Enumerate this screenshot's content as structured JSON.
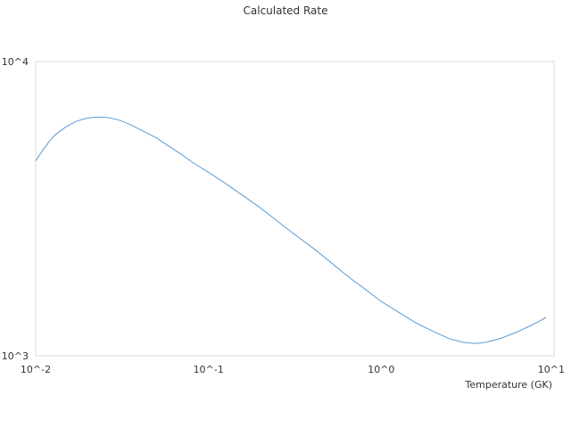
{
  "chart_data": {
    "type": "line",
    "title": "Calculated Rate",
    "xlabel": "Temperature (GK)",
    "ylabel": "",
    "x_scale": "log",
    "y_scale": "log",
    "xlim": [
      0.01,
      10
    ],
    "ylim": [
      1000,
      10000
    ],
    "x_ticks": [
      {
        "value": 0.01,
        "label": "10^-2"
      },
      {
        "value": 0.1,
        "label": "10^-1"
      },
      {
        "value": 1,
        "label": "10^0"
      },
      {
        "value": 10,
        "label": "10^1"
      }
    ],
    "y_ticks": [
      {
        "value": 1000,
        "label": "10^3"
      },
      {
        "value": 10000,
        "label": "10^4"
      }
    ],
    "grid": false,
    "legend": "none",
    "series": [
      {
        "color": "#5b9bd5",
        "x": [
          0.01,
          0.011,
          0.012,
          0.013,
          0.015,
          0.017,
          0.019,
          0.021,
          0.023,
          0.026,
          0.03,
          0.035,
          0.04,
          0.05,
          0.06,
          0.07,
          0.08,
          0.1,
          0.12,
          0.15,
          0.2,
          0.25,
          0.3,
          0.4,
          0.5,
          0.6,
          0.7,
          0.8,
          1.0,
          1.3,
          1.6,
          2.0,
          2.5,
          3.0,
          3.5,
          4.0,
          4.5,
          5.0,
          6.0,
          7.0,
          8.0,
          9.0
        ],
        "y": [
          4600,
          5000,
          5350,
          5650,
          6000,
          6250,
          6380,
          6450,
          6480,
          6450,
          6340,
          6120,
          5880,
          5500,
          5120,
          4830,
          4560,
          4200,
          3920,
          3580,
          3180,
          2870,
          2640,
          2330,
          2100,
          1920,
          1790,
          1690,
          1530,
          1390,
          1290,
          1210,
          1140,
          1110,
          1100,
          1110,
          1130,
          1150,
          1200,
          1250,
          1300,
          1350
        ]
      }
    ]
  },
  "colors": {
    "line": "#5b9bd5",
    "plot_border": "#d9d9d9",
    "text": "#333333"
  }
}
